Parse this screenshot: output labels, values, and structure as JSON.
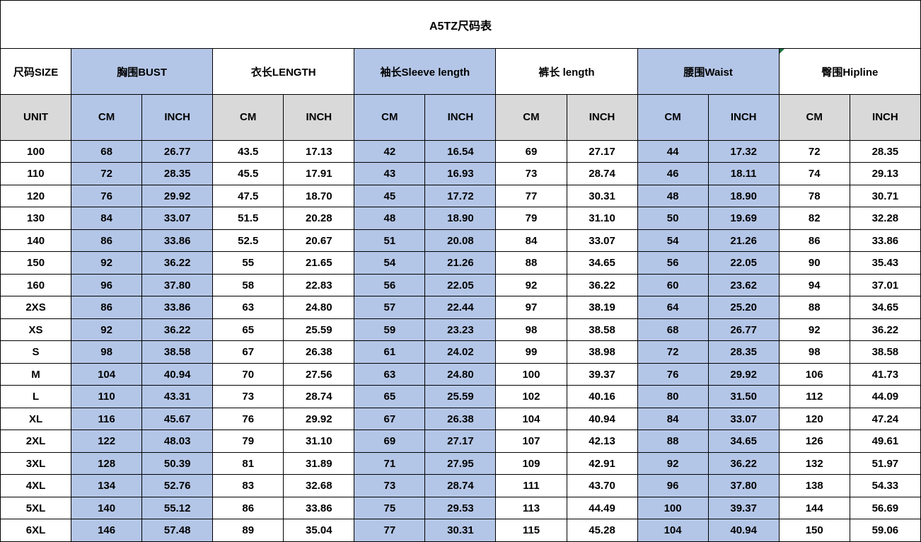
{
  "title": "A5TZ尺码表",
  "colors": {
    "group_fill_blue": "#B4C6E7",
    "unit_fill_gray": "#D9D9D9",
    "border": "#000000",
    "corner_marker_green": "#1E7145"
  },
  "header": {
    "size_label": "尺码SIZE",
    "unit_label": "UNIT",
    "cm_label": "CM",
    "inch_label": "INCH",
    "groups": [
      {
        "label": "胸围BUST",
        "tone": "blue",
        "marker": false
      },
      {
        "label": "衣长LENGTH",
        "tone": "white",
        "marker": false
      },
      {
        "label": "袖长Sleeve length",
        "tone": "blue",
        "marker": false
      },
      {
        "label": "裤长 length",
        "tone": "white",
        "marker": false
      },
      {
        "label": "腰围Waist",
        "tone": "blue",
        "marker": false
      },
      {
        "label": "臀围Hipline",
        "tone": "white",
        "marker": true
      }
    ]
  },
  "rows": [
    {
      "size": "100",
      "values": [
        "68",
        "26.77",
        "43.5",
        "17.13",
        "42",
        "16.54",
        "69",
        "27.17",
        "44",
        "17.32",
        "72",
        "28.35"
      ]
    },
    {
      "size": "110",
      "values": [
        "72",
        "28.35",
        "45.5",
        "17.91",
        "43",
        "16.93",
        "73",
        "28.74",
        "46",
        "18.11",
        "74",
        "29.13"
      ]
    },
    {
      "size": "120",
      "values": [
        "76",
        "29.92",
        "47.5",
        "18.70",
        "45",
        "17.72",
        "77",
        "30.31",
        "48",
        "18.90",
        "78",
        "30.71"
      ]
    },
    {
      "size": "130",
      "values": [
        "84",
        "33.07",
        "51.5",
        "20.28",
        "48",
        "18.90",
        "79",
        "31.10",
        "50",
        "19.69",
        "82",
        "32.28"
      ]
    },
    {
      "size": "140",
      "values": [
        "86",
        "33.86",
        "52.5",
        "20.67",
        "51",
        "20.08",
        "84",
        "33.07",
        "54",
        "21.26",
        "86",
        "33.86"
      ]
    },
    {
      "size": "150",
      "values": [
        "92",
        "36.22",
        "55",
        "21.65",
        "54",
        "21.26",
        "88",
        "34.65",
        "56",
        "22.05",
        "90",
        "35.43"
      ]
    },
    {
      "size": "160",
      "values": [
        "96",
        "37.80",
        "58",
        "22.83",
        "56",
        "22.05",
        "92",
        "36.22",
        "60",
        "23.62",
        "94",
        "37.01"
      ]
    },
    {
      "size": "2XS",
      "values": [
        "86",
        "33.86",
        "63",
        "24.80",
        "57",
        "22.44",
        "97",
        "38.19",
        "64",
        "25.20",
        "88",
        "34.65"
      ]
    },
    {
      "size": "XS",
      "values": [
        "92",
        "36.22",
        "65",
        "25.59",
        "59",
        "23.23",
        "98",
        "38.58",
        "68",
        "26.77",
        "92",
        "36.22"
      ]
    },
    {
      "size": "S",
      "values": [
        "98",
        "38.58",
        "67",
        "26.38",
        "61",
        "24.02",
        "99",
        "38.98",
        "72",
        "28.35",
        "98",
        "38.58"
      ]
    },
    {
      "size": "M",
      "values": [
        "104",
        "40.94",
        "70",
        "27.56",
        "63",
        "24.80",
        "100",
        "39.37",
        "76",
        "29.92",
        "106",
        "41.73"
      ]
    },
    {
      "size": "L",
      "values": [
        "110",
        "43.31",
        "73",
        "28.74",
        "65",
        "25.59",
        "102",
        "40.16",
        "80",
        "31.50",
        "112",
        "44.09"
      ]
    },
    {
      "size": "XL",
      "values": [
        "116",
        "45.67",
        "76",
        "29.92",
        "67",
        "26.38",
        "104",
        "40.94",
        "84",
        "33.07",
        "120",
        "47.24"
      ]
    },
    {
      "size": "2XL",
      "values": [
        "122",
        "48.03",
        "79",
        "31.10",
        "69",
        "27.17",
        "107",
        "42.13",
        "88",
        "34.65",
        "126",
        "49.61"
      ]
    },
    {
      "size": "3XL",
      "values": [
        "128",
        "50.39",
        "81",
        "31.89",
        "71",
        "27.95",
        "109",
        "42.91",
        "92",
        "36.22",
        "132",
        "51.97"
      ]
    },
    {
      "size": "4XL",
      "values": [
        "134",
        "52.76",
        "83",
        "32.68",
        "73",
        "28.74",
        "111",
        "43.70",
        "96",
        "37.80",
        "138",
        "54.33"
      ]
    },
    {
      "size": "5XL",
      "values": [
        "140",
        "55.12",
        "86",
        "33.86",
        "75",
        "29.53",
        "113",
        "44.49",
        "100",
        "39.37",
        "144",
        "56.69"
      ]
    },
    {
      "size": "6XL",
      "values": [
        "146",
        "57.48",
        "89",
        "35.04",
        "77",
        "30.31",
        "115",
        "45.28",
        "104",
        "40.94",
        "150",
        "59.06"
      ]
    }
  ]
}
